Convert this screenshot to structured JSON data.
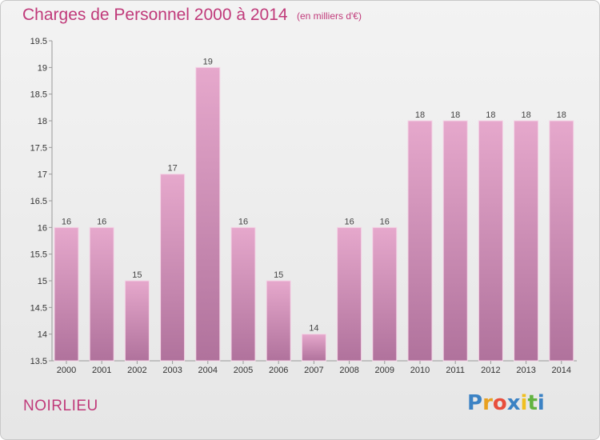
{
  "header": {
    "title": "Charges de Personnel 2000 à 2014",
    "subtitle": "(en milliers d'€)"
  },
  "footer": {
    "place": "NOIRLIEU",
    "logo_letters": [
      "P",
      "r",
      "o",
      "x",
      "i",
      "t",
      "i"
    ]
  },
  "colors": {
    "title": "#c03a7a",
    "bar_top": "#e6a8cc",
    "bar_bottom": "#b0729c",
    "logo": [
      "#3b82c4",
      "#e8a020",
      "#e84e3c",
      "#3b82c4",
      "#f0c020",
      "#62b340",
      "#3b82c4"
    ]
  },
  "chart_data": {
    "type": "bar",
    "categories": [
      "2000",
      "2001",
      "2002",
      "2003",
      "2004",
      "2005",
      "2006",
      "2007",
      "2008",
      "2009",
      "2010",
      "2011",
      "2012",
      "2013",
      "2014"
    ],
    "values": [
      16,
      16,
      15,
      17,
      19,
      16,
      15,
      14,
      16,
      16,
      18,
      18,
      18,
      18,
      18
    ],
    "data_labels": [
      "16",
      "16",
      "15",
      "17",
      "19",
      "16",
      "15",
      "14",
      "16",
      "16",
      "18",
      "18",
      "18",
      "18",
      "18"
    ],
    "ylim": [
      13.5,
      19.5
    ],
    "yticks": [
      "13.5",
      "14",
      "14.5",
      "15",
      "15.5",
      "16",
      "16.5",
      "17",
      "17.5",
      "18",
      "18.5",
      "19",
      "19.5"
    ],
    "grid": false,
    "xlabel": "",
    "ylabel": ""
  }
}
